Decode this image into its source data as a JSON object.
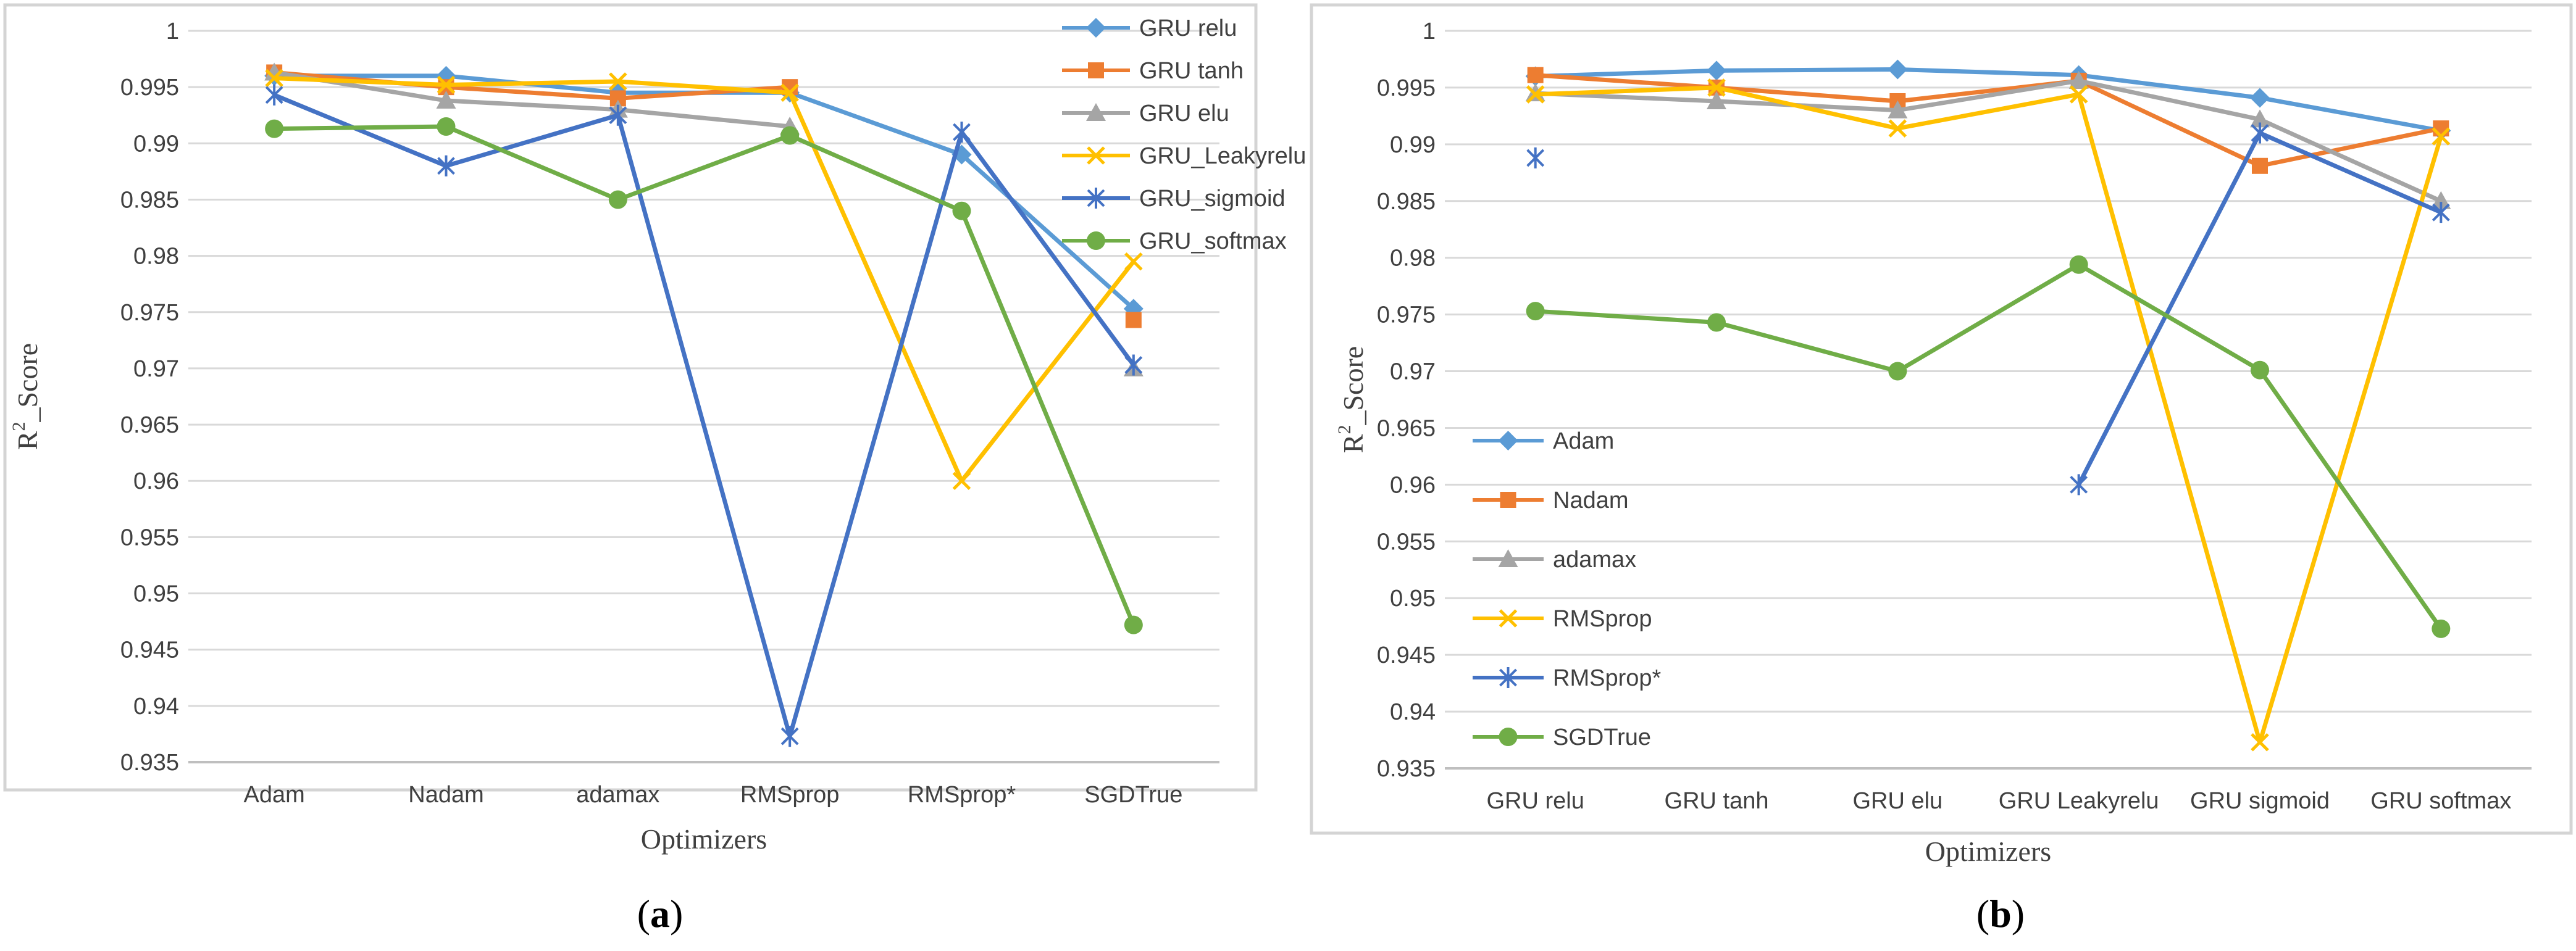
{
  "chart_data": [
    {
      "type": "line",
      "panel": "a",
      "caption": "a",
      "xlabel": "Optimizers",
      "ylabel": "R",
      "ylabel_sup": "2",
      "ylabel_rest": "_Score",
      "ylim": [
        0.935,
        1
      ],
      "ytick_step": 0.005,
      "ytick_labels": [
        "0.935",
        "0.94",
        "0.945",
        "0.95",
        "0.955",
        "0.96",
        "0.965",
        "0.97",
        "0.975",
        "0.98",
        "0.985",
        "0.99",
        "0.995",
        "1"
      ],
      "grid": true,
      "legend_position": "top-right",
      "categories": [
        "Adam",
        "Nadam",
        "adamax",
        "RMSprop",
        "RMSprop*",
        "SGDTrue"
      ],
      "series": [
        {
          "name": "GRU relu",
          "color": "#5b9bd5",
          "marker": "diamond",
          "values": [
            0.996,
            0.996,
            0.9945,
            0.9945,
            0.989,
            0.9753
          ]
        },
        {
          "name": "GRU tanh",
          "color": "#ed7d31",
          "marker": "square",
          "values": [
            0.9963,
            0.995,
            0.994,
            0.995,
            null,
            0.9743
          ]
        },
        {
          "name": "GRU elu",
          "color": "#a5a5a5",
          "marker": "triangle",
          "values": [
            0.9963,
            0.9938,
            0.993,
            0.9915,
            null,
            0.97
          ]
        },
        {
          "name": "GRU_Leakyrelu",
          "color": "#ffc000",
          "marker": "x",
          "values": [
            0.9958,
            0.9952,
            0.9955,
            0.9945,
            0.96,
            0.9795
          ]
        },
        {
          "name": "GRU_sigmoid",
          "color": "#4472c4",
          "marker": "star",
          "values": [
            0.9943,
            0.988,
            0.9925,
            0.9373,
            0.991,
            0.9703
          ]
        },
        {
          "name": "GRU_softmax",
          "color": "#70ad47",
          "marker": "circle",
          "values": [
            0.9913,
            0.9915,
            0.985,
            0.9907,
            0.984,
            0.9472
          ]
        }
      ]
    },
    {
      "type": "line",
      "panel": "b",
      "caption": "b",
      "xlabel": "Optimizers",
      "ylabel": "R",
      "ylabel_sup": "2",
      "ylabel_rest": "_Score",
      "ylim": [
        0.935,
        1
      ],
      "ytick_step": 0.005,
      "ytick_labels": [
        "0.935",
        "0.94",
        "0.945",
        "0.95",
        "0.955",
        "0.96",
        "0.965",
        "0.97",
        "0.975",
        "0.98",
        "0.985",
        "0.99",
        "0.995",
        "1"
      ],
      "grid": true,
      "legend_position": "middle-left",
      "categories": [
        "GRU relu",
        "GRU tanh",
        "GRU elu",
        "GRU Leakyrelu",
        "GRU sigmoid",
        "GRU softmax"
      ],
      "series": [
        {
          "name": "Adam",
          "color": "#5b9bd5",
          "marker": "diamond",
          "values": [
            0.996,
            0.9965,
            0.9966,
            0.9961,
            0.9941,
            0.9912
          ]
        },
        {
          "name": "Nadam",
          "color": "#ed7d31",
          "marker": "square",
          "values": [
            0.9961,
            0.995,
            0.9938,
            0.9956,
            0.9881,
            0.9914
          ]
        },
        {
          "name": "adamax",
          "color": "#a5a5a5",
          "marker": "triangle",
          "values": [
            0.9945,
            0.9938,
            0.993,
            0.9956,
            0.9922,
            0.985
          ]
        },
        {
          "name": "RMSprop",
          "color": "#ffc000",
          "marker": "x",
          "values": [
            0.9944,
            0.995,
            0.9914,
            0.9944,
            0.9373,
            0.9907
          ]
        },
        {
          "name": "RMSprop*",
          "color": "#4472c4",
          "marker": "star",
          "values": [
            0.9888,
            null,
            null,
            0.96,
            0.991,
            0.984
          ]
        },
        {
          "name": "SGDTrue",
          "color": "#70ad47",
          "marker": "circle",
          "values": [
            0.9753,
            0.9743,
            0.97,
            0.9794,
            0.9701,
            0.9473
          ]
        }
      ]
    }
  ]
}
